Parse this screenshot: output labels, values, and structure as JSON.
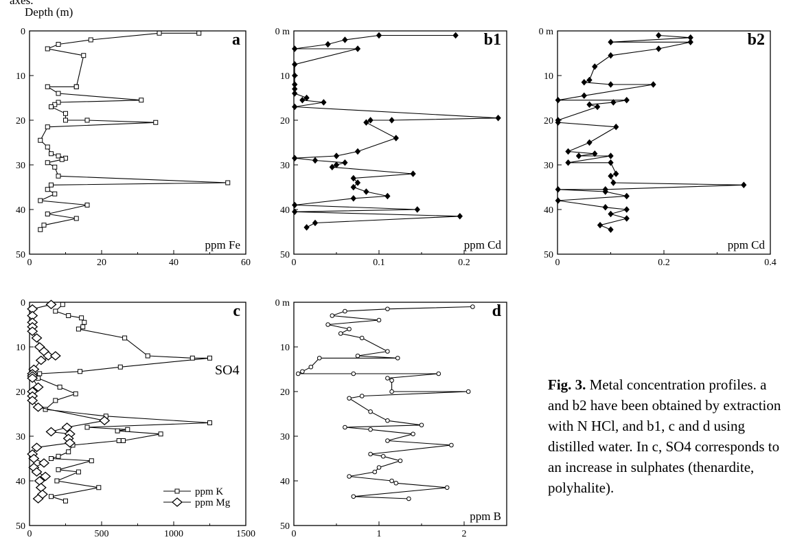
{
  "figure": {
    "top_cut_text": "axes.",
    "depth_label": "Depth (m)",
    "caption": {
      "title": "Fig. 3.",
      "text": " Metal concentration profiles. a and b2 have been obtained by extraction with N HCl, and b1, c and d using distilled water. In c, SO4 corresponds to an increase in sulphates (thenardite, polyhalite)."
    }
  },
  "chart_data": [
    {
      "type": "line",
      "panel": "a",
      "label": "ppm Fe",
      "xlim": [
        0,
        60
      ],
      "ylim": [
        0,
        50
      ],
      "xticks": [
        "0",
        "20",
        "40",
        "60"
      ],
      "yticks": [
        "0",
        "10",
        "20",
        "30",
        "40",
        "50"
      ],
      "series": [
        {
          "marker": "square",
          "x": [
            47,
            36,
            17,
            8,
            5,
            15,
            13,
            13,
            5,
            8,
            31,
            8,
            7,
            6,
            10,
            10,
            16,
            35,
            5,
            3,
            5,
            6,
            8,
            10,
            9,
            5,
            7,
            8,
            55,
            6,
            5,
            7,
            3,
            16,
            5,
            13,
            4,
            3
          ],
          "y": [
            0.5,
            0.5,
            2,
            3,
            4,
            5.5,
            12.5,
            12.5,
            12.5,
            14,
            15.5,
            16,
            16.5,
            17,
            18.5,
            20,
            20,
            20.5,
            21.5,
            24.5,
            26,
            27.5,
            28,
            28.5,
            28.8,
            29.5,
            30.5,
            32.5,
            34,
            34.5,
            35.5,
            36.5,
            38,
            39,
            41,
            42,
            43.5,
            44.5
          ]
        }
      ]
    },
    {
      "type": "line",
      "panel": "b1",
      "label": "ppm Cd",
      "xlim": [
        0,
        0.25
      ],
      "ylim": [
        0,
        50
      ],
      "xticks": [
        "0",
        "0.1",
        "0.2"
      ],
      "yticks": [
        "0 m",
        "10",
        "20",
        "30",
        "40",
        "50"
      ],
      "series": [
        {
          "marker": "diamond",
          "x": [
            0.19,
            0.1,
            0.06,
            0.04,
            0.001,
            0.075,
            0.001,
            0.001,
            0.001,
            0.001,
            0.001,
            0.015,
            0.01,
            0.035,
            0.001,
            0.24,
            0.115,
            0.09,
            0.085,
            0.12,
            0.075,
            0.05,
            0.001,
            0.025,
            0.06,
            0.05,
            0.045,
            0.14,
            0.07,
            0.075,
            0.07,
            0.085,
            0.11,
            0.07,
            0.001,
            0.145,
            0.001,
            0.195,
            0.025,
            0.015
          ],
          "y": [
            1,
            1,
            2,
            3,
            4,
            4,
            7.5,
            10,
            12,
            13,
            14,
            15,
            15.5,
            16,
            17,
            19.5,
            20,
            20,
            20.5,
            24,
            27,
            28,
            28.5,
            29,
            29.5,
            30,
            30.5,
            32,
            33,
            34,
            35,
            36,
            37,
            37.5,
            39,
            40,
            40.5,
            41.5,
            43,
            44
          ]
        }
      ]
    },
    {
      "type": "line",
      "panel": "b2",
      "label": "ppm Cd",
      "xlim": [
        0,
        0.4
      ],
      "ylim": [
        0,
        50
      ],
      "xticks": [
        "0",
        "0.2",
        "0.4"
      ],
      "yticks": [
        "0 m",
        "10",
        "20",
        "30",
        "40",
        "50"
      ],
      "series": [
        {
          "marker": "diamond",
          "x": [
            0.19,
            0.25,
            0.1,
            0.25,
            0.19,
            0.1,
            0.07,
            0.06,
            0.05,
            0.1,
            0.18,
            0.05,
            0.001,
            0.13,
            0.105,
            0.06,
            0.075,
            0.001,
            0.001,
            0.11,
            0.06,
            0.02,
            0.07,
            0.04,
            0.1,
            0.02,
            0.1,
            0.11,
            0.1,
            0.105,
            0.35,
            0.09,
            0.001,
            0.09,
            0.13,
            0.001,
            0.09,
            0.13,
            0.1,
            0.13,
            0.08,
            0.1
          ],
          "y": [
            1,
            1.5,
            2.5,
            2.5,
            4,
            5.5,
            8,
            11,
            11.5,
            12,
            12,
            14.5,
            15.5,
            15.5,
            16,
            16.5,
            17,
            20,
            20.5,
            21.5,
            25,
            27,
            27.5,
            28,
            28,
            29.5,
            29.5,
            32,
            32.5,
            34,
            34.5,
            35.5,
            35.5,
            36,
            37,
            38,
            39.5,
            40,
            41,
            42,
            43.5,
            44.5
          ]
        }
      ]
    },
    {
      "type": "line",
      "panel": "c",
      "annotation": "SO4",
      "xlim": [
        0,
        1500
      ],
      "ylim": [
        0,
        50
      ],
      "xticks": [
        "0",
        "500",
        "1000",
        "1500"
      ],
      "yticks": [
        "0",
        "10",
        "20",
        "30",
        "40",
        "50"
      ],
      "series": [
        {
          "name": "ppm K",
          "marker": "square",
          "x": [
            230,
            180,
            270,
            360,
            380,
            370,
            340,
            660,
            820,
            1130,
            1250,
            630,
            350,
            70,
            60,
            210,
            320,
            180,
            110,
            530,
            1250,
            400,
            680,
            610,
            910,
            650,
            620,
            300,
            270,
            200,
            150,
            430,
            200,
            340,
            190,
            480,
            150,
            250
          ],
          "y": [
            0.5,
            2,
            3,
            3.5,
            4.5,
            5.5,
            6,
            8,
            12,
            12.5,
            12.5,
            14.5,
            15.5,
            16,
            17,
            19,
            20.5,
            22,
            24,
            25.5,
            27,
            28,
            28.5,
            28.8,
            29.5,
            31,
            31,
            32,
            33.5,
            34.5,
            35,
            35.5,
            37.5,
            38,
            40,
            41.5,
            43.5,
            44.5
          ]
        },
        {
          "name": "ppm Mg",
          "marker": "diamond",
          "x": [
            150,
            20,
            20,
            20,
            20,
            20,
            50,
            70,
            100,
            130,
            180,
            80,
            30,
            20,
            20,
            20,
            60,
            20,
            20,
            20,
            60,
            520,
            260,
            150,
            280,
            270,
            280,
            50,
            20,
            30,
            100,
            30,
            50,
            110,
            70,
            80,
            90,
            60
          ],
          "y": [
            0.5,
            1.5,
            3,
            4.5,
            5.5,
            6.5,
            8,
            10,
            11,
            12,
            12,
            13,
            15,
            16,
            16.5,
            17,
            19,
            20,
            21,
            22,
            23.5,
            26.5,
            28,
            29,
            29.5,
            30.5,
            31.5,
            32.5,
            34,
            35,
            36,
            37,
            38,
            39,
            40,
            41.5,
            43,
            44
          ]
        }
      ]
    },
    {
      "type": "line",
      "panel": "d",
      "label": "ppm B",
      "xlim": [
        0,
        2.5
      ],
      "ylim": [
        0,
        50
      ],
      "xticks": [
        "0",
        "1",
        "2"
      ],
      "yticks": [
        "0 m",
        "10",
        "20",
        "30",
        "40",
        "50"
      ],
      "series": [
        {
          "marker": "circle",
          "x": [
            2.1,
            1.1,
            0.6,
            0.45,
            1,
            0.4,
            0.65,
            0.55,
            0.8,
            1.1,
            0.75,
            1.22,
            0.3,
            0.2,
            0.1,
            0.05,
            0.7,
            1.7,
            1.1,
            1.15,
            1.15,
            2.05,
            0.8,
            0.65,
            0.9,
            1.1,
            1.5,
            0.6,
            0.9,
            1.4,
            1.1,
            1.85,
            0.9,
            1.05,
            1.25,
            1,
            0.95,
            0.65,
            1.15,
            1.2,
            1.8,
            0.7,
            1.35
          ],
          "y": [
            1,
            1.5,
            2,
            3,
            4,
            5,
            6,
            7,
            8,
            11,
            12,
            12.5,
            12.5,
            14.5,
            15.5,
            16,
            16,
            16,
            17,
            17.5,
            20,
            20,
            21,
            21.5,
            24.5,
            26.5,
            27.5,
            28,
            28.5,
            29.5,
            31,
            32,
            34,
            34.5,
            35.5,
            37,
            38,
            39,
            40,
            40.5,
            41.5,
            43.5,
            44
          ]
        }
      ]
    }
  ]
}
